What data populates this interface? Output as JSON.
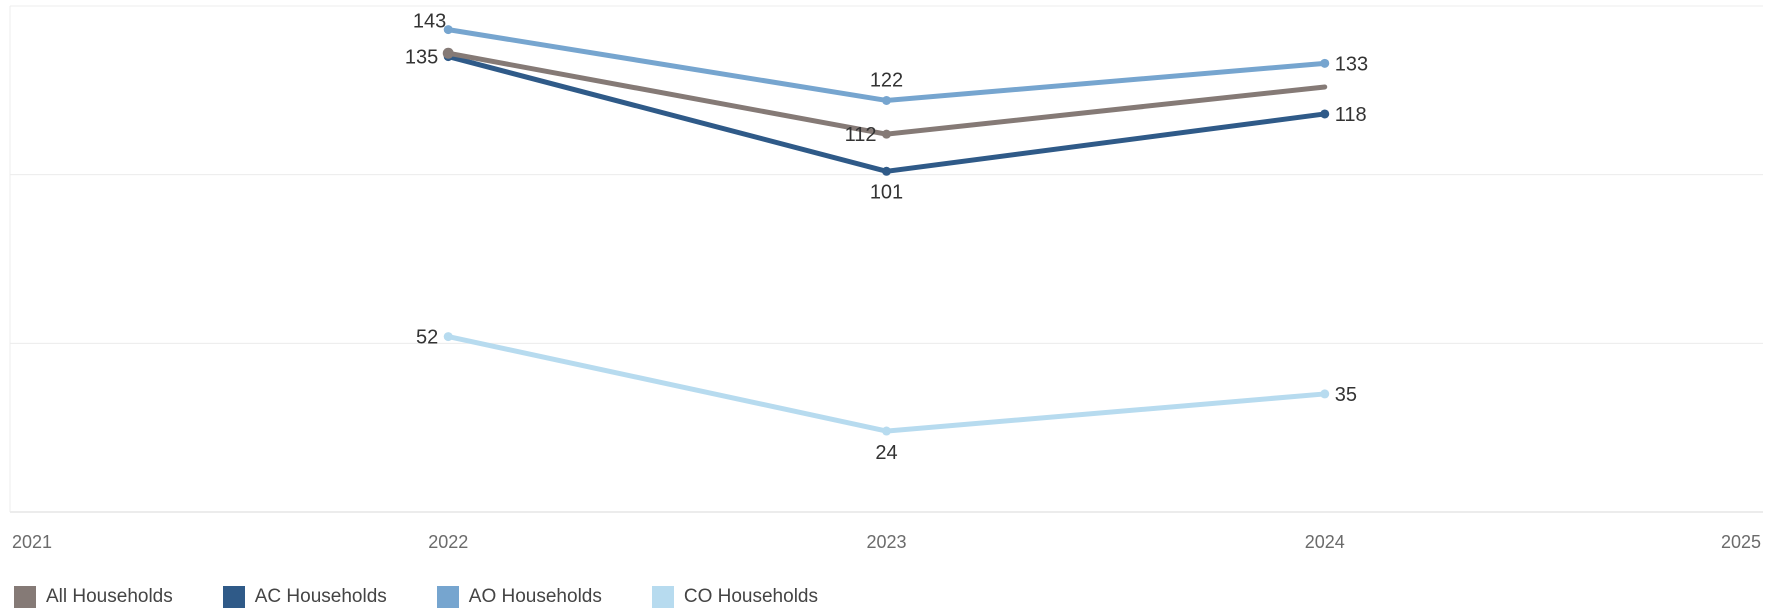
{
  "chart_data": {
    "type": "line",
    "x_ticks": [
      "2021",
      "2022",
      "2023",
      "2024",
      "2025"
    ],
    "xlim": [
      2021,
      2025
    ],
    "ylim": [
      0,
      150
    ],
    "grid": true,
    "legend_position": "bottom-left",
    "series": [
      {
        "name": "All Households",
        "color": "#857a76",
        "x": [
          2022,
          2023,
          2024
        ],
        "values": [
          136,
          112,
          126
        ],
        "labels": [
          "",
          "112",
          ""
        ]
      },
      {
        "name": "AC Households",
        "color": "#2f5a88",
        "x": [
          2022,
          2023,
          2024
        ],
        "values": [
          135,
          101,
          118
        ],
        "labels": [
          "135",
          "101",
          "118"
        ]
      },
      {
        "name": "AO Households",
        "color": "#76a5cf",
        "x": [
          2022,
          2023,
          2024
        ],
        "values": [
          143,
          122,
          133
        ],
        "labels": [
          "143",
          "122",
          "133"
        ]
      },
      {
        "name": "CO Households",
        "color": "#b7dbef",
        "x": [
          2022,
          2023,
          2024
        ],
        "values": [
          52,
          24,
          35
        ],
        "labels": [
          "52",
          "24",
          "35"
        ]
      }
    ]
  }
}
